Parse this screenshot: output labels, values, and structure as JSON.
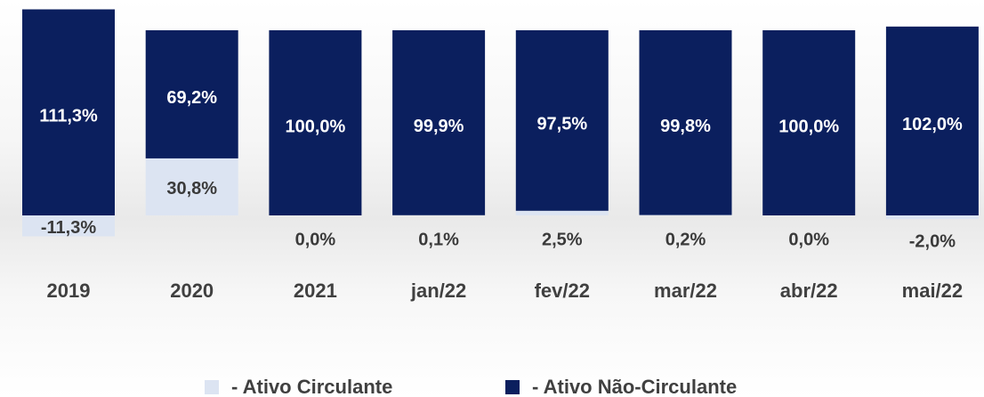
{
  "chart_data": {
    "type": "stacked_bar",
    "categories": [
      "2019",
      "2020",
      "2021",
      "jan/22",
      "fev/22",
      "mar/22",
      "abr/22",
      "mai/22"
    ],
    "series": [
      {
        "name": "- Ativo Circulante",
        "color": "#dce4f2",
        "values": [
          -11.3,
          30.8,
          0.0,
          0.1,
          2.5,
          0.2,
          0.0,
          -2.0
        ],
        "value_labels": [
          "-11,3%",
          "30,8%",
          "0,0%",
          "0,1%",
          "2,5%",
          "0,2%",
          "0,0%",
          "-2,0%"
        ]
      },
      {
        "name": "- Ativo Não-Circulante",
        "color": "#0b1f5e",
        "values": [
          111.3,
          69.2,
          100.0,
          99.9,
          97.5,
          99.8,
          100.0,
          102.0
        ],
        "value_labels": [
          "111,3%",
          "69,2%",
          "100,0%",
          "99,9%",
          "97,5%",
          "99,8%",
          "100,0%",
          "102,0%"
        ]
      }
    ],
    "ylim": [
      -20,
      120
    ]
  }
}
